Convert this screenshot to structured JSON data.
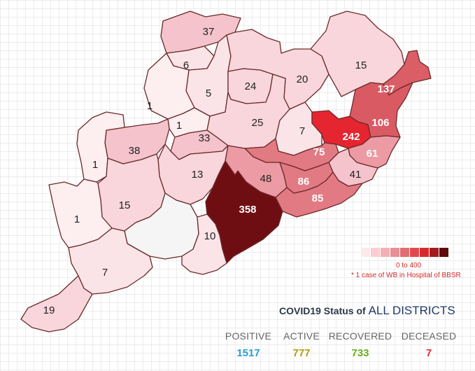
{
  "map": {
    "districts": [
      {
        "id": "d-37",
        "label": "37",
        "count": 37
      },
      {
        "id": "d-6",
        "label": "6",
        "count": 6
      },
      {
        "id": "d-5",
        "label": "5",
        "count": 5
      },
      {
        "id": "d-24",
        "label": "24",
        "count": 24
      },
      {
        "id": "d-20",
        "label": "20",
        "count": 20
      },
      {
        "id": "d-15ne",
        "label": "15",
        "count": 15
      },
      {
        "id": "d-137",
        "label": "137",
        "count": 137
      },
      {
        "id": "d-1a",
        "label": "1",
        "count": 1
      },
      {
        "id": "d-1b",
        "label": "1",
        "count": 1
      },
      {
        "id": "d-25",
        "label": "25",
        "count": 25
      },
      {
        "id": "d-7c",
        "label": "7",
        "count": 7
      },
      {
        "id": "d-242",
        "label": "242",
        "count": 242
      },
      {
        "id": "d-106",
        "label": "106",
        "count": 106
      },
      {
        "id": "d-38",
        "label": "38",
        "count": 38
      },
      {
        "id": "d-33",
        "label": "33",
        "count": 33
      },
      {
        "id": "d-75",
        "label": "75",
        "count": 75
      },
      {
        "id": "d-61",
        "label": "61",
        "count": 61
      },
      {
        "id": "d-1c",
        "label": "1",
        "count": 1
      },
      {
        "id": "d-13",
        "label": "13",
        "count": 13
      },
      {
        "id": "d-48",
        "label": "48",
        "count": 48
      },
      {
        "id": "d-41",
        "label": "41",
        "count": 41
      },
      {
        "id": "d-86",
        "label": "86",
        "count": 86
      },
      {
        "id": "d-15w",
        "label": "15",
        "count": 15
      },
      {
        "id": "d-358",
        "label": "358",
        "count": 358
      },
      {
        "id": "d-85",
        "label": "85",
        "count": 85
      },
      {
        "id": "d-1d",
        "label": "1",
        "count": 1
      },
      {
        "id": "d-0",
        "label": "",
        "count": 0
      },
      {
        "id": "d-10",
        "label": "10",
        "count": 10
      },
      {
        "id": "d-7s",
        "label": "7",
        "count": 7
      },
      {
        "id": "d-19",
        "label": "19",
        "count": 19
      }
    ]
  },
  "legend": {
    "colors": [
      "#fde9ec",
      "#f9cdd2",
      "#f2b0b5",
      "#e69094",
      "#e26e73",
      "#e04a4e",
      "#d52b30",
      "#a31d1f",
      "#5c0c0c"
    ],
    "range": "0 to 400",
    "note": "* 1 case of WB in Hospital of BBSR"
  },
  "status": {
    "title": "COVID19 Status of",
    "scope": "ALL DISTRICTS",
    "stats": [
      {
        "key": "positive",
        "label": "POSITIVE",
        "value": "1517",
        "color": "#2a9fd6"
      },
      {
        "key": "active",
        "label": "ACTIVE",
        "value": "777",
        "color": "#b59a12"
      },
      {
        "key": "recovered",
        "label": "RECOVERED",
        "value": "733",
        "color": "#6cae1f"
      },
      {
        "key": "deceased",
        "label": "DECEASED",
        "value": "7",
        "color": "#e03030"
      }
    ]
  }
}
